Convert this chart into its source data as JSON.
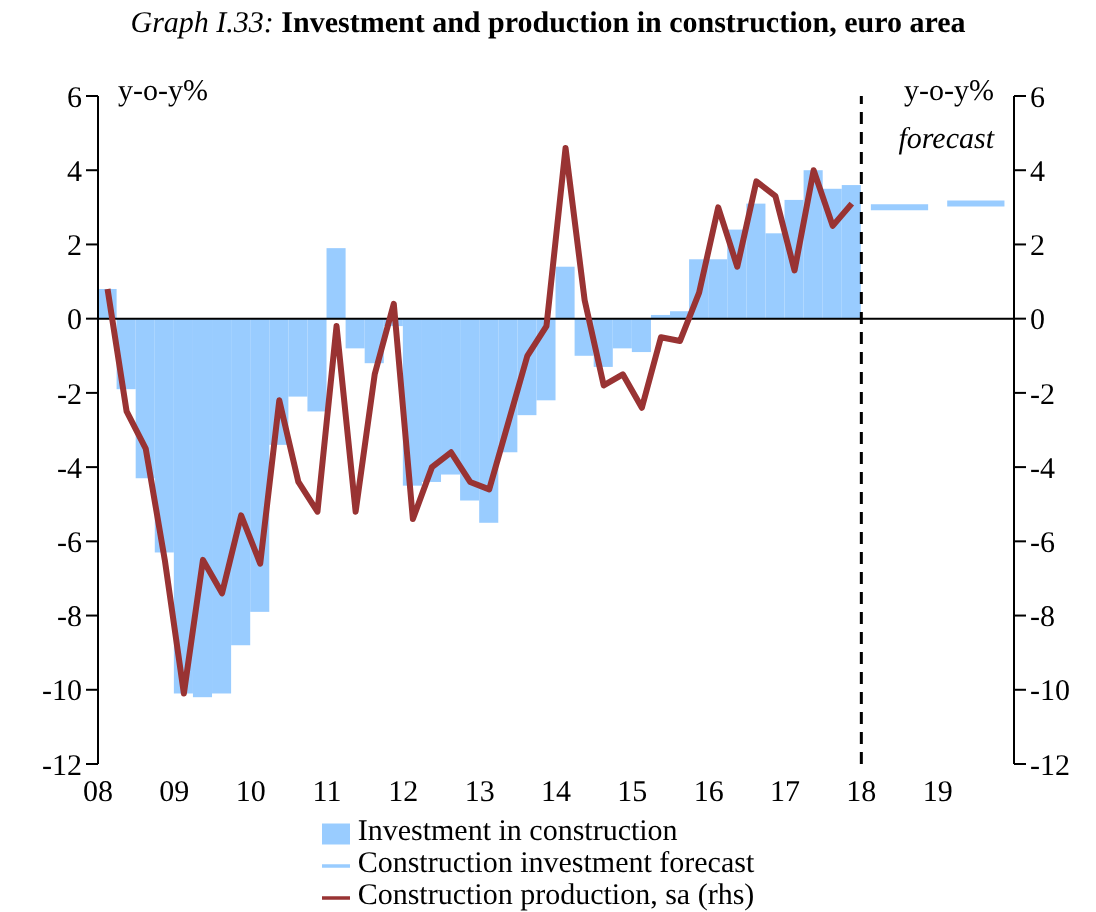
{
  "chart_data": {
    "type": "bar",
    "title": "Graph I.33: Investment and production in construction, euro area",
    "ylabel": "y-o-y%",
    "y2label": "y-o-y%",
    "annotations": [
      "forecast"
    ],
    "x": [
      2008.125,
      2008.375,
      2008.625,
      2008.875,
      2009.125,
      2009.375,
      2009.625,
      2009.875,
      2010.125,
      2010.375,
      2010.625,
      2010.875,
      2011.125,
      2011.375,
      2011.625,
      2011.875,
      2012.125,
      2012.375,
      2012.625,
      2012.875,
      2013.125,
      2013.375,
      2013.625,
      2013.875,
      2014.125,
      2014.375,
      2014.625,
      2014.875,
      2015.125,
      2015.375,
      2015.625,
      2015.875,
      2016.125,
      2016.375,
      2016.625,
      2016.875,
      2017.125,
      2017.375,
      2017.625,
      2017.875
    ],
    "series": [
      {
        "name": "Investment in construction",
        "color": "#99ccff",
        "values": [
          0.8,
          -1.9,
          -4.3,
          -6.3,
          -10.1,
          -10.2,
          -10.1,
          -8.8,
          -7.9,
          -3.4,
          -2.1,
          -2.5,
          1.9,
          -0.8,
          -1.2,
          -0.2,
          -4.5,
          -4.4,
          -4.2,
          -4.9,
          -5.5,
          -3.6,
          -2.6,
          -2.2,
          1.4,
          -1.0,
          -1.3,
          -0.8,
          -0.9,
          0.1,
          0.2,
          1.6,
          1.6,
          2.4,
          3.1,
          2.3,
          3.2,
          4.0,
          3.5,
          3.6
        ]
      },
      {
        "name": "Construction investment forecast",
        "type": "line",
        "color": "#99ccff",
        "x": [
          2018.125,
          2018.875,
          2019,
          2019.125,
          2019.875
        ],
        "values": [
          3.0,
          3.0,
          null,
          3.1,
          3.1
        ]
      },
      {
        "name": "Construction production, sa (rhs)",
        "type": "line",
        "color": "#993333",
        "values": [
          0.8,
          -2.5,
          -3.5,
          -6.5,
          -10.1,
          -6.5,
          -7.4,
          -5.3,
          -6.6,
          -2.2,
          -4.4,
          -5.2,
          -0.2,
          -5.2,
          -1.5,
          0.4,
          -5.4,
          -4.0,
          -3.6,
          -4.4,
          -4.6,
          -2.8,
          -1.0,
          -0.2,
          4.6,
          0.5,
          -1.8,
          -1.5,
          -2.4,
          -0.5,
          -0.6,
          0.7,
          3.0,
          1.4,
          3.7,
          3.3,
          1.3,
          4.0,
          2.5,
          3.1
        ]
      }
    ],
    "xlim": [
      2008,
      2020
    ],
    "xticks": [
      {
        "value": 2008,
        "label": "08"
      },
      {
        "value": 2009,
        "label": "09"
      },
      {
        "value": 2010,
        "label": "10"
      },
      {
        "value": 2011,
        "label": "11"
      },
      {
        "value": 2012,
        "label": "12"
      },
      {
        "value": 2013,
        "label": "13"
      },
      {
        "value": 2014,
        "label": "14"
      },
      {
        "value": 2015,
        "label": "15"
      },
      {
        "value": 2016,
        "label": "16"
      },
      {
        "value": 2017,
        "label": "17"
      },
      {
        "value": 2018,
        "label": "18"
      },
      {
        "value": 2019,
        "label": "19"
      }
    ],
    "ylim": [
      -12,
      6
    ],
    "yticks": [
      -12,
      -10,
      -8,
      -6,
      -4,
      -2,
      0,
      2,
      4,
      6
    ],
    "y2lim": [
      -12,
      6
    ],
    "y2ticks": [
      -12,
      -10,
      -8,
      -6,
      -4,
      -2,
      0,
      2,
      4,
      6
    ],
    "ref_lines": [
      {
        "axis": "x",
        "value": 2018,
        "color": "#000000",
        "line_style": "dashed"
      }
    ],
    "grid": false,
    "legend": "bottom",
    "marker": "none"
  }
}
